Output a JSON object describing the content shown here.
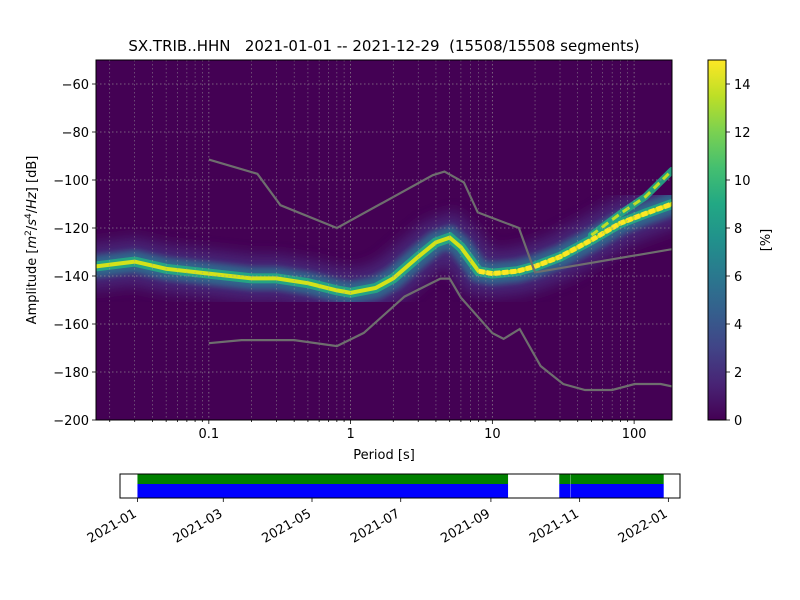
{
  "chart_data": {
    "type": "heatmap",
    "title": "SX.TRIB..HHN   2021-01-01 -- 2021-12-29  (15508/15508 segments)",
    "xlabel": "Period [s]",
    "ylabel_parts": [
      "Amplitude [",
      "m",
      "2",
      "/",
      "s",
      "4",
      "/",
      "Hz",
      "] [dB]"
    ],
    "x_scale": "log",
    "xlim": [
      0.016,
      185
    ],
    "ylim": [
      -200,
      -50
    ],
    "x_ticks": [
      0.1,
      1,
      10,
      100
    ],
    "x_tick_labels": [
      "0.1",
      "1",
      "10",
      "100"
    ],
    "y_ticks": [
      -200,
      -180,
      -160,
      -140,
      -120,
      -100,
      -80,
      -60
    ],
    "y_tick_labels": [
      "−200",
      "−180",
      "−160",
      "−140",
      "−120",
      "−100",
      "−80",
      "−60"
    ],
    "grid": true,
    "colorbar": {
      "label": "[%]",
      "range": [
        0,
        15
      ],
      "ticks": [
        0,
        2,
        4,
        6,
        8,
        10,
        12,
        14
      ],
      "tick_labels": [
        "0",
        "2",
        "4",
        "6",
        "8",
        "10",
        "12",
        "14"
      ],
      "colormap": "viridis"
    },
    "mode_curve": {
      "period": [
        0.016,
        0.03,
        0.05,
        0.1,
        0.2,
        0.3,
        0.5,
        0.8,
        1.0,
        1.5,
        2.0,
        3.0,
        4.0,
        5.0,
        6.0,
        8.0,
        10.0,
        15.0,
        20.0,
        30.0,
        50.0,
        80.0,
        120.0,
        185.0
      ],
      "amplitude": [
        -136,
        -134,
        -137,
        -139,
        -141,
        -141,
        -143,
        -146,
        -147,
        -145,
        -141,
        -132,
        -126,
        -124,
        -128,
        -138,
        -139,
        -138,
        -136,
        -132,
        -125,
        -118,
        -114,
        -110
      ]
    },
    "secondary_curve": {
      "period": [
        50.0,
        80.0,
        120.0,
        185.0
      ],
      "amplitude": [
        -123,
        -114,
        -107,
        -96
      ]
    },
    "nhnm": {
      "period": [
        0.1,
        0.22,
        0.32,
        0.8,
        3.8,
        4.6,
        6.3,
        7.9,
        15.4,
        20,
        354.8
      ],
      "amplitude": [
        -91.5,
        -97.4,
        -110.5,
        -120.0,
        -98.0,
        -96.5,
        -101.0,
        -113.5,
        -120.0,
        -138.5,
        -126.0
      ]
    },
    "nlnm": {
      "period": [
        0.1,
        0.17,
        0.4,
        0.8,
        1.24,
        2.4,
        4.3,
        5.0,
        6.0,
        10.0,
        12.0,
        15.6,
        21.9,
        31.6,
        45.0,
        70.0,
        101.0,
        154.0,
        185.0
      ],
      "amplitude": [
        -168.0,
        -166.7,
        -166.7,
        -169.2,
        -163.7,
        -148.6,
        -141.1,
        -141.1,
        -149.0,
        -163.8,
        -166.2,
        -162.1,
        -177.5,
        -185.0,
        -187.5,
        -187.5,
        -185.0,
        -185.0,
        -186.0
      ]
    },
    "availability": {
      "x_tick_labels": [
        "2021-01",
        "2021-03",
        "2021-05",
        "2021-07",
        "2021-09",
        "2021-11",
        "2022-01"
      ],
      "x_ticks": [
        "2021-01-01",
        "2021-03-01",
        "2021-05-01",
        "2021-07-01",
        "2021-09-01",
        "2021-11-01",
        "2022-01-01"
      ],
      "xlim": [
        "2020-12-20",
        "2022-01-09"
      ],
      "segments": [
        {
          "start": "2021-01-01",
          "end": "2021-09-13"
        },
        {
          "start": "2021-10-18",
          "end": "2021-10-26"
        },
        {
          "start": "2021-10-26",
          "end": "2021-12-29"
        }
      ],
      "top_color": "#008000",
      "bottom_color": "#0000ff"
    }
  }
}
